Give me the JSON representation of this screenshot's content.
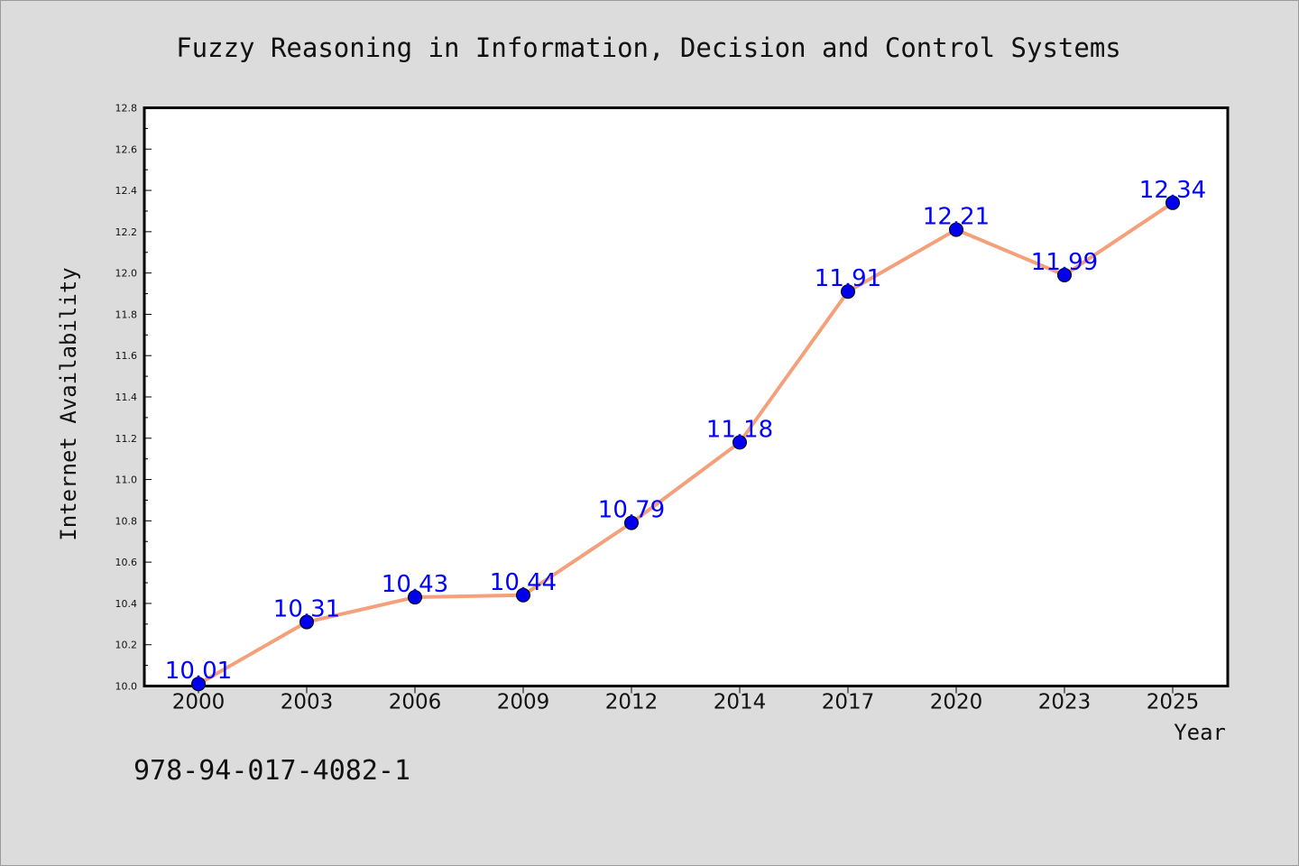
{
  "chart_data": {
    "type": "line",
    "title": "Fuzzy Reasoning in Information, Decision and Control Systems",
    "xlabel": "Year",
    "ylabel": "Internet Availability",
    "categories": [
      "2000",
      "2003",
      "2006",
      "2009",
      "2012",
      "2014",
      "2017",
      "2020",
      "2023",
      "2025"
    ],
    "series": [
      {
        "values": [
          10.01,
          10.31,
          10.43,
          10.44,
          10.79,
          11.18,
          11.91,
          12.21,
          11.99,
          12.34
        ],
        "data_labels": [
          "10.01",
          "10.31",
          "10.43",
          "10.44",
          "10.79",
          "11.18",
          "11.91",
          "12.21",
          "11.99",
          "12.34"
        ],
        "line_color": "#f4a07a",
        "marker_color": "#0000ee"
      }
    ],
    "ylim": [
      10.0,
      12.8
    ],
    "yticks": [
      "10.0",
      "10.2",
      "10.4",
      "10.6",
      "10.8",
      "11.0",
      "11.2",
      "11.4",
      "11.6",
      "11.8",
      "12.0",
      "12.2",
      "12.4",
      "12.6",
      "12.8"
    ],
    "grid": false,
    "legend": "none"
  },
  "footnote": "978-94-017-4082-1",
  "colors": {
    "background": "#dcdcdc",
    "plot_background": "#ffffff",
    "data_label": "#0000ff"
  }
}
